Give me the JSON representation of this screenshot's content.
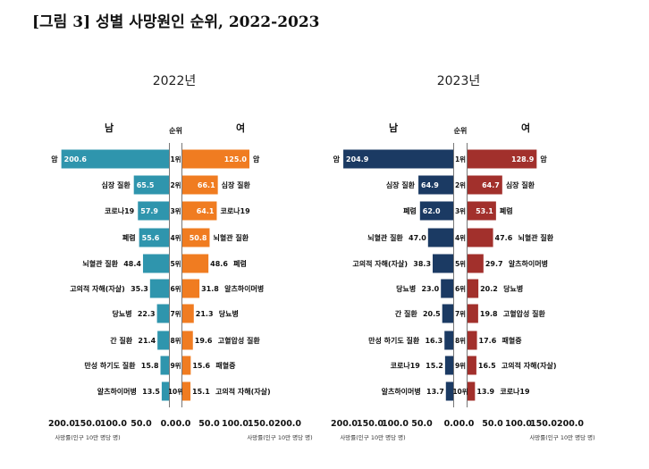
{
  "figure_title": "[그림 3] 성별 사망원인 순위, 2022-2023",
  "chart_data": [
    {
      "type": "bar",
      "title": "2022년",
      "left_label": "남",
      "right_label": "여",
      "rank_header": "순위",
      "ranks": [
        "1위",
        "2위",
        "3위",
        "4위",
        "5위",
        "6위",
        "7위",
        "8위",
        "9위",
        "10위"
      ],
      "male": {
        "color": "#2f95ad",
        "categories": [
          "암",
          "심장 질환",
          "코로나19",
          "폐렴",
          "뇌혈관 질환",
          "고의적 자해(자살)",
          "당뇨병",
          "간 질환",
          "만성 하기도 질환",
          "알츠하이머병"
        ],
        "values": [
          200.6,
          65.5,
          57.9,
          55.6,
          48.4,
          35.3,
          22.3,
          21.4,
          15.8,
          13.5
        ]
      },
      "female": {
        "color": "#f07c21",
        "categories": [
          "암",
          "심장 질환",
          "코로나19",
          "뇌혈관 질환",
          "폐렴",
          "알츠하이머병",
          "당뇨병",
          "고혈압성 질환",
          "패혈증",
          "고의적 자해(자살)"
        ],
        "values": [
          125.0,
          66.1,
          64.1,
          50.8,
          48.6,
          31.8,
          21.3,
          19.6,
          15.6,
          15.1
        ]
      },
      "x_ticks_left": [
        "200.0",
        "150.0",
        "100.0",
        "50.0",
        "0.0"
      ],
      "x_ticks_right": [
        "0.0",
        "50.0",
        "100.0",
        "150.0",
        "200.0"
      ],
      "xlim": [
        0,
        200
      ],
      "x_unit_label": "사망률(인구 10만 명당 명)"
    },
    {
      "type": "bar",
      "title": "2023년",
      "left_label": "남",
      "right_label": "여",
      "rank_header": "순위",
      "ranks": [
        "1위",
        "2위",
        "3위",
        "4위",
        "5위",
        "6위",
        "7위",
        "8위",
        "9위",
        "10위"
      ],
      "male": {
        "color": "#1b3a63",
        "categories": [
          "암",
          "심장 질환",
          "폐렴",
          "뇌혈관 질환",
          "고의적 자해(자살)",
          "당뇨병",
          "간 질환",
          "만성 하기도 질환",
          "코로나19",
          "알츠하이머병"
        ],
        "values": [
          204.9,
          64.9,
          62.0,
          47.0,
          38.3,
          23.0,
          20.5,
          16.3,
          15.2,
          13.7
        ]
      },
      "female": {
        "color": "#a2302c",
        "categories": [
          "암",
          "심장 질환",
          "폐렴",
          "뇌혈관 질환",
          "알츠하이머병",
          "당뇨병",
          "고혈압성 질환",
          "패혈증",
          "고의적 자해(자살)",
          "코로나19"
        ],
        "values": [
          128.9,
          64.7,
          53.1,
          47.6,
          29.7,
          20.2,
          19.8,
          17.6,
          16.5,
          13.9
        ]
      },
      "x_ticks_left": [
        "200.0",
        "150.0",
        "100.0",
        "50.0",
        "0.0"
      ],
      "x_ticks_right": [
        "0.0",
        "50.0",
        "100.0",
        "150.0",
        "200.0"
      ],
      "xlim": [
        0,
        200
      ],
      "x_unit_label": "사망률(인구 10만 명당 명)"
    }
  ]
}
